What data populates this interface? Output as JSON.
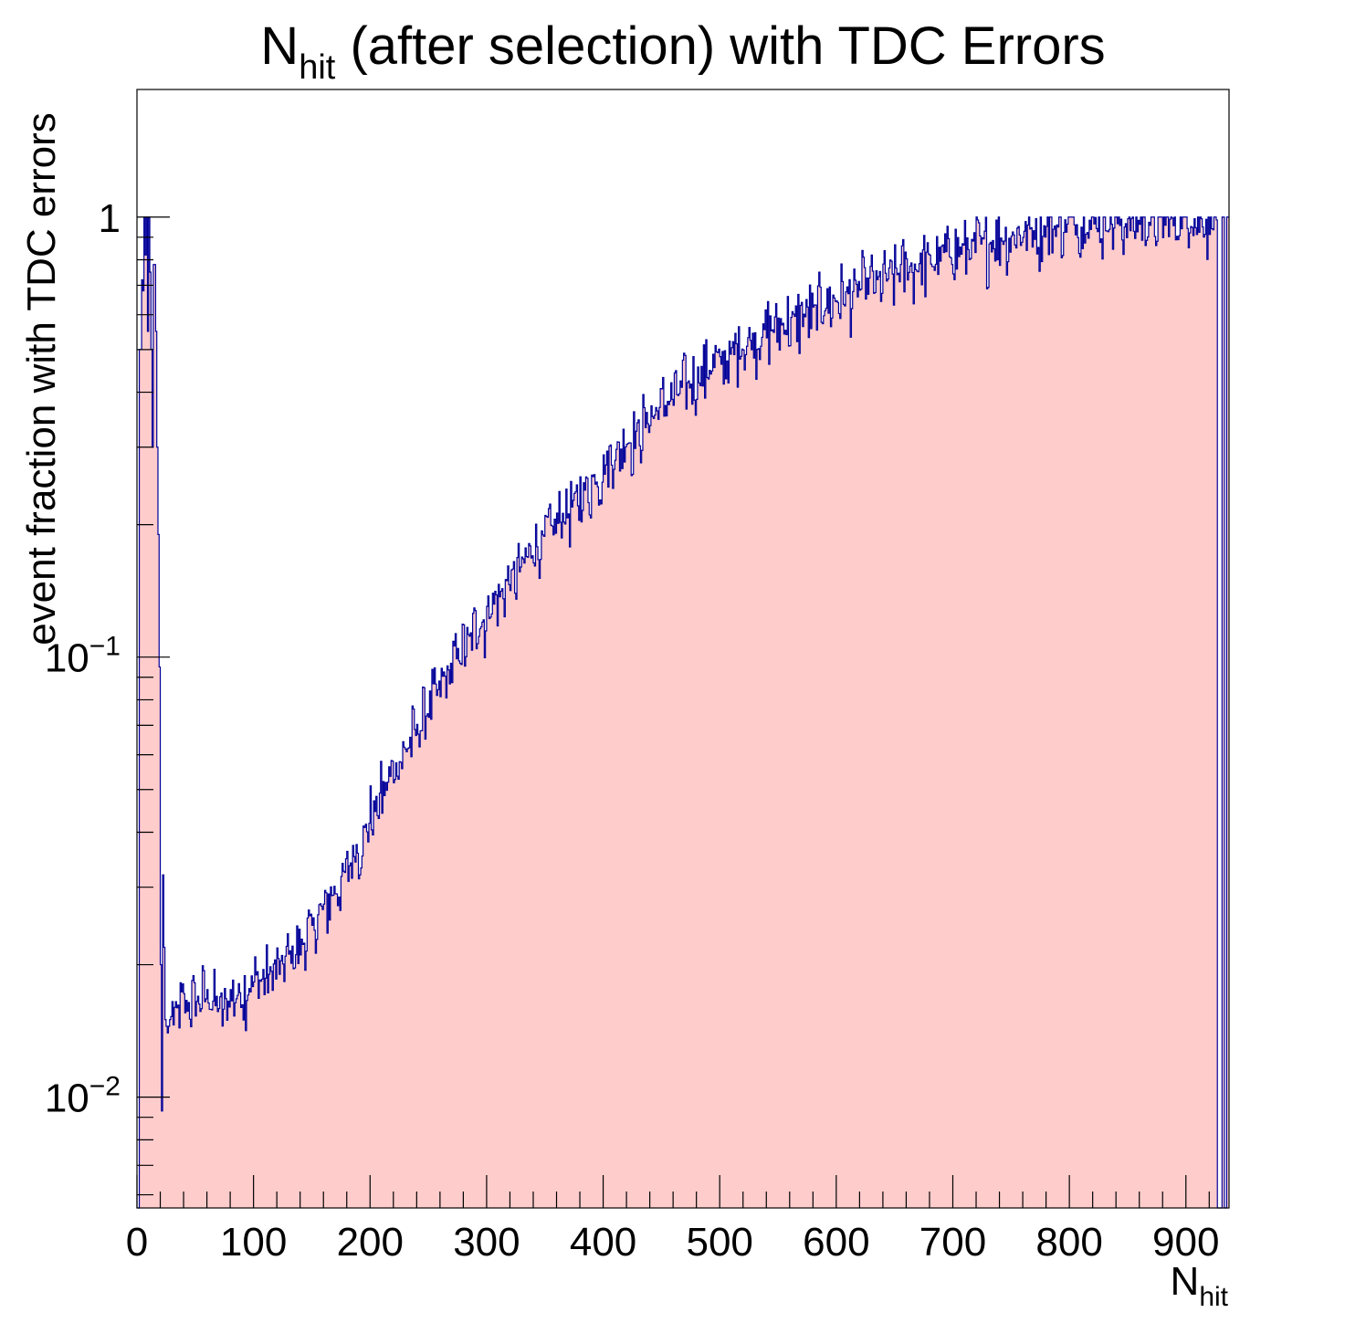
{
  "chart_data": {
    "type": "histogram",
    "title": {
      "main": "N",
      "sub": "hit",
      "rest": " (after selection) with TDC Errors"
    },
    "xlabel": {
      "main": "N",
      "sub": "hit"
    },
    "ylabel": "event fraction with TDC errors",
    "xlim": [
      0,
      937
    ],
    "ylim": [
      0.0056,
      1.95
    ],
    "yscale": "log",
    "x_ticks": [
      0,
      100,
      200,
      300,
      400,
      500,
      600,
      700,
      800,
      900
    ],
    "y_ticks": [
      {
        "value": 0.01,
        "base": "10",
        "exp": "−2"
      },
      {
        "value": 0.1,
        "base": "10",
        "exp": "−1"
      },
      {
        "value": 1,
        "base": "1",
        "exp": ""
      }
    ],
    "bin_width": 1,
    "fill_color": "#ffcccc",
    "line_color": "#000099",
    "series": [
      {
        "points": [
          [
            0,
            0
          ],
          [
            3,
            0.5
          ],
          [
            4,
            0.72
          ],
          [
            5,
            0.68
          ],
          [
            6,
            1.0
          ],
          [
            7,
            0.82
          ],
          [
            8,
            1.0
          ],
          [
            9,
            0.55
          ],
          [
            10,
            1.0
          ],
          [
            11,
            0.75
          ],
          [
            12,
            0.5
          ],
          [
            13,
            0.3
          ],
          [
            14,
            0.78
          ],
          [
            15,
            0.78
          ],
          [
            16,
            0.55
          ],
          [
            17,
            0.3
          ],
          [
            18,
            0.19
          ],
          [
            19,
            0.095
          ],
          [
            20,
            0.02
          ],
          [
            21,
            0.0093
          ],
          [
            22,
            0.032
          ],
          [
            24,
            0.015
          ],
          [
            26,
            0.014
          ],
          [
            28,
            0.015
          ],
          [
            30,
            0.0155
          ],
          [
            40,
            0.016
          ],
          [
            50,
            0.0165
          ],
          [
            60,
            0.017
          ],
          [
            70,
            0.016
          ],
          [
            75,
            0.0155
          ],
          [
            80,
            0.017
          ],
          [
            100,
            0.018
          ],
          [
            120,
            0.0195
          ],
          [
            140,
            0.022
          ],
          [
            160,
            0.027
          ],
          [
            180,
            0.033
          ],
          [
            200,
            0.043
          ],
          [
            220,
            0.055
          ],
          [
            240,
            0.068
          ],
          [
            260,
            0.085
          ],
          [
            280,
            0.105
          ],
          [
            300,
            0.125
          ],
          [
            320,
            0.15
          ],
          [
            340,
            0.175
          ],
          [
            360,
            0.2
          ],
          [
            380,
            0.235
          ],
          [
            400,
            0.27
          ],
          [
            420,
            0.31
          ],
          [
            440,
            0.35
          ],
          [
            460,
            0.39
          ],
          [
            480,
            0.43
          ],
          [
            500,
            0.47
          ],
          [
            520,
            0.51
          ],
          [
            540,
            0.55
          ],
          [
            560,
            0.58
          ],
          [
            580,
            0.61
          ],
          [
            600,
            0.65
          ],
          [
            620,
            0.69
          ],
          [
            640,
            0.72
          ],
          [
            660,
            0.76
          ],
          [
            680,
            0.8
          ],
          [
            700,
            0.83
          ],
          [
            720,
            0.86
          ],
          [
            740,
            0.89
          ],
          [
            760,
            0.92
          ],
          [
            780,
            0.94
          ],
          [
            800,
            0.955
          ],
          [
            820,
            0.965
          ],
          [
            840,
            0.975
          ],
          [
            860,
            0.975
          ],
          [
            880,
            0.98
          ],
          [
            900,
            0.98
          ],
          [
            920,
            0.985
          ],
          [
            926,
            0.985
          ],
          [
            927,
            0
          ],
          [
            930,
            0
          ],
          [
            931,
            1.0
          ],
          [
            932,
            1.0
          ],
          [
            933,
            0
          ],
          [
            934,
            0
          ],
          [
            935,
            1.0
          ],
          [
            936,
            1.0
          ]
        ]
      }
    ]
  }
}
